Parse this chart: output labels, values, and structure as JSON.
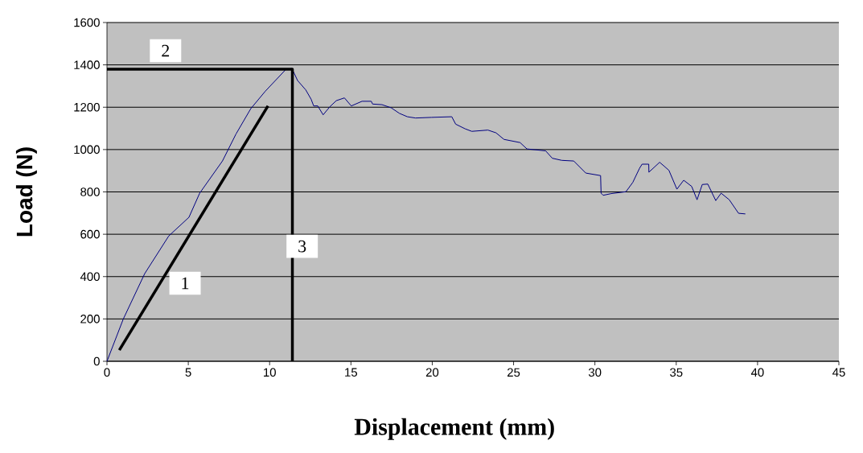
{
  "chart_data": {
    "type": "line",
    "xlabel": "Displacement  (mm)",
    "ylabel": "Load (N)",
    "xlim": [
      0,
      45
    ],
    "xticks": [
      0,
      5,
      10,
      15,
      20,
      25,
      30,
      35,
      40,
      45
    ],
    "ylim": [
      0,
      1600
    ],
    "yticks": [
      0,
      200,
      400,
      600,
      800,
      1000,
      1200,
      1400,
      1600
    ],
    "grid": "y",
    "marker": "none",
    "line_style": "solid",
    "series": [
      {
        "color": "#000080",
        "x": [
          0,
          1.0,
          2.32,
          3.8,
          5.04,
          5.7,
          7.1,
          7.93,
          8.84,
          9.74,
          10.98,
          11.37,
          11.72,
          12.22,
          12.55,
          12.71,
          12.96,
          13.29,
          13.7,
          14.1,
          14.6,
          15.02,
          15.68,
          16.25,
          16.33,
          16.91,
          17.48,
          17.98,
          18.47,
          18.97,
          19.96,
          21.2,
          21.44,
          22.02,
          22.43,
          23.42,
          23.92,
          24.41,
          25.4,
          25.82,
          26.97,
          27.38,
          27.96,
          28.7,
          29.44,
          30.35,
          30.38,
          30.51,
          31.0,
          31.91,
          32.33,
          32.74,
          32.9,
          33.31,
          33.32,
          33.98,
          34.55,
          35.04,
          35.46,
          35.95,
          36.28,
          36.6,
          36.94,
          37.43,
          37.76,
          38.26,
          38.83,
          39.25
        ],
        "values": [
          0,
          199,
          414,
          592,
          680,
          794,
          946,
          1073,
          1193,
          1276,
          1377,
          1383,
          1326,
          1282,
          1238,
          1206,
          1206,
          1164,
          1202,
          1231,
          1244,
          1206,
          1228,
          1228,
          1215,
          1212,
          1197,
          1171,
          1155,
          1149,
          1152,
          1155,
          1120,
          1098,
          1086,
          1092,
          1079,
          1048,
          1033,
          1003,
          994,
          959,
          949,
          946,
          889,
          877,
          794,
          784,
          792,
          801,
          845,
          911,
          931,
          931,
          893,
          940,
          902,
          813,
          855,
          826,
          763,
          835,
          837,
          759,
          794,
          763,
          699,
          696
        ]
      },
      {
        "type": "line",
        "color": "#000000",
        "x": [
          0.76,
          9.9
        ],
        "values": [
          53,
          1206
        ]
      },
      {
        "type": "line",
        "color": "#000000",
        "x": [
          0,
          11.4,
          11.4
        ],
        "values": [
          1380,
          1380,
          0
        ]
      }
    ],
    "annotations": [
      {
        "text": "1",
        "x": 4.8,
        "y": 369
      },
      {
        "text": "2",
        "x": 3.6,
        "y": 1467
      },
      {
        "text": "3",
        "x": 12.0,
        "y": 543
      }
    ]
  }
}
